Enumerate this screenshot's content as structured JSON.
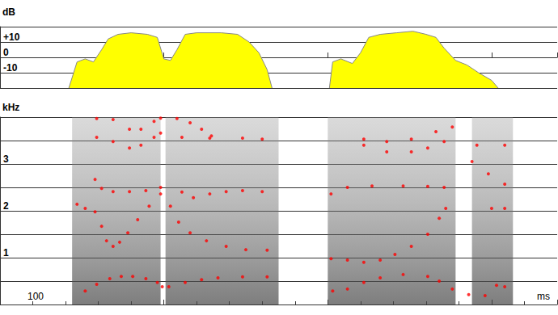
{
  "chart_data": [
    {
      "type": "area",
      "y_label": "dB",
      "xlim": [
        0,
        340
      ],
      "xticks": [
        0,
        100,
        200,
        300
      ],
      "ylim": [
        -20,
        20
      ],
      "yticks": [
        -10,
        0,
        {
          "value": 10,
          "label": "+10"
        }
      ],
      "grid": true,
      "tick_labels": "y",
      "color": "#ffff00",
      "x": [
        42,
        47,
        52,
        57,
        62,
        66,
        72,
        80,
        90,
        96,
        100,
        104,
        108,
        113,
        120,
        135,
        145,
        152,
        158,
        163,
        166,
        183,
        201,
        203,
        208,
        215,
        220,
        225,
        232,
        242,
        252,
        260,
        266,
        271,
        278,
        285,
        292,
        300,
        304
      ],
      "values": [
        -20,
        -3,
        -1,
        -3,
        5,
        12,
        15,
        16,
        15,
        13,
        -1,
        -2,
        5,
        15,
        16,
        16,
        15,
        10,
        3,
        -8,
        -20,
        null,
        -20,
        -3,
        -1,
        -4,
        3,
        13,
        15,
        16,
        17,
        15,
        13,
        6,
        -2,
        -5,
        -10,
        -15,
        -20
      ]
    },
    {
      "type": "scatter",
      "y_label": "kHz",
      "x_label": "ms",
      "annotations": [
        "100"
      ],
      "xlim": [
        0,
        340
      ],
      "xticks": [
        0,
        100,
        200,
        300
      ],
      "ylim": [
        0,
        4
      ],
      "yticks": [
        1,
        2,
        3
      ],
      "grid": true,
      "tick_labels": "y",
      "spectrogram_regions": [
        [
          44,
          98
        ],
        [
          101,
          170
        ],
        [
          200,
          278
        ],
        [
          288,
          313
        ]
      ],
      "series": [
        {
          "color": "#ff0000",
          "marker": "circle",
          "x": [
            52,
            59,
            67,
            74,
            81,
            89,
            96,
            99,
            103,
            113,
            123,
            133,
            148,
            163,
            203,
            212,
            222,
            232,
            246,
            261,
            268,
            276,
            286,
            296,
            303,
            308
          ],
          "values": [
            0.29,
            0.43,
            0.55,
            0.6,
            0.6,
            0.55,
            0.47,
            0.38,
            0.38,
            0.47,
            0.53,
            0.57,
            0.59,
            0.59,
            0.29,
            0.33,
            0.47,
            0.57,
            0.64,
            0.6,
            0.5,
            0.33,
            0.21,
            0.19,
            0.41,
            0.38
          ]
        },
        {
          "color": "#ff0000",
          "marker": "circle",
          "x": [
            47,
            52,
            58,
            62,
            65,
            69,
            73,
            78,
            84,
            91,
            98,
            104,
            109,
            116,
            126,
            138,
            150,
            163,
            202,
            212,
            222,
            232,
            241,
            251,
            261,
            268,
            272,
            300,
            308
          ],
          "values": [
            2.14,
            2.05,
            1.98,
            1.67,
            1.36,
            1.24,
            1.33,
            1.53,
            1.81,
            2.1,
            2.36,
            2.1,
            1.76,
            1.53,
            1.36,
            1.24,
            1.17,
            1.16,
            0.98,
            0.95,
            0.9,
            0.95,
            1.07,
            1.24,
            1.5,
            1.84,
            2.05,
            2.05,
            2.05
          ]
        },
        {
          "color": "#ff0000",
          "marker": "circle",
          "x": [
            58,
            62,
            69,
            79,
            89,
            98,
            111,
            118,
            128,
            138,
            148,
            160,
            202,
            212,
            227,
            246,
            261,
            271,
            288,
            298,
            308
          ],
          "values": [
            2.67,
            2.48,
            2.41,
            2.41,
            2.43,
            2.5,
            2.4,
            2.28,
            2.36,
            2.41,
            2.43,
            2.41,
            2.36,
            2.5,
            2.53,
            2.53,
            2.52,
            2.5,
            3.05,
            2.79,
            2.57
          ]
        },
        {
          "color": "#ff0000",
          "marker": "circle",
          "x": [
            59,
            69,
            79,
            86,
            94,
            98,
            111,
            128,
            148,
            160,
            222,
            236,
            251,
            261,
            271
          ],
          "values": [
            3.57,
            3.48,
            3.34,
            3.4,
            3.57,
            3.66,
            3.57,
            3.55,
            3.55,
            3.53,
            3.4,
            3.26,
            3.26,
            3.34,
            3.48
          ]
        },
        {
          "color": "#ff0000",
          "marker": "circle",
          "x": [
            59,
            69,
            79,
            86,
            94,
            98,
            108,
            116,
            123,
            129,
            222,
            236,
            251,
            266,
            276,
            291,
            308
          ],
          "values": [
            3.97,
            3.95,
            3.74,
            3.74,
            3.91,
            3.98,
            3.97,
            3.88,
            3.74,
            3.6,
            3.53,
            3.48,
            3.53,
            3.69,
            3.79,
            3.4,
            3.4
          ]
        }
      ]
    }
  ]
}
